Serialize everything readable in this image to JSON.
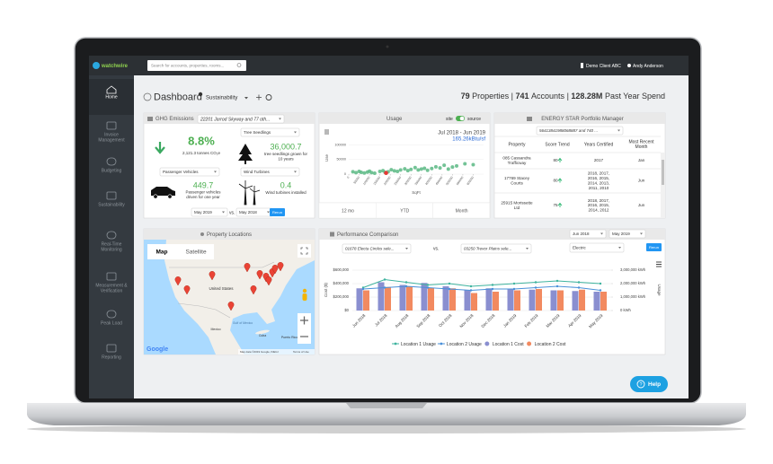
{
  "topbar": {
    "logo": "watchwire",
    "search": "Search for accounts, properties, rooms...",
    "client": "Demo Client ABC",
    "user": "Andy Anderson"
  },
  "sidebar": [
    [
      "Home"
    ],
    [
      "Invoice",
      "Management"
    ],
    [
      "Budgeting"
    ],
    [
      "Sustainability"
    ],
    [
      "Real-Time",
      "Monitoring"
    ],
    [
      "Measurement &",
      "Verification"
    ],
    [
      "Peak Load"
    ],
    [
      "Reporting"
    ]
  ],
  "header": {
    "title": "Dashboard",
    "view": "Sustainability",
    "properties": "79",
    "properties_label": "Properties",
    "accounts": "741",
    "accounts_label": "Accounts",
    "spend": "128.28M",
    "spend_label": "Past Year Spend",
    "separator": "|"
  },
  "ghg": {
    "title": "GHG Emissions",
    "selection": "22201 Jarrod Skyway and 77 oth...",
    "change": "8.8%",
    "total": "2,121.3 tonnes CO₂e",
    "tree_select": "Tree Seedlings",
    "trees": "36,000.7",
    "trees_text": [
      "tree seedlings grown for",
      "10 years"
    ],
    "vehicle_select": "Passenger Vehicles",
    "vehicles": "449.7",
    "vehicles_text": [
      "Passenger vehicles",
      "driven for one year"
    ],
    "wind_select": "Wind Turbines",
    "wind": "0.4",
    "wind_text": [
      "Wind turbines installed"
    ],
    "date_from": "May 2019",
    "vs": "vs.",
    "date_to": "May 2018",
    "rerun": "Rerun"
  },
  "usage": {
    "title": "Usage",
    "toggle_left": "site",
    "toggle_right": "source",
    "period": "Jul 2018 - Jun 2019",
    "value": "165.26kBtu/sf",
    "tabs": [
      "12 mo",
      "YTD",
      "Month"
    ],
    "chart": {
      "type": "scatter",
      "x_label": "SqFt",
      "y_label": "Use",
      "x": [
        20000,
        35000,
        50000,
        60000,
        75000,
        90000,
        100000,
        110000,
        125000,
        150000,
        165000,
        175000,
        190000,
        205000,
        220000,
        235000,
        250000,
        270000,
        285000,
        300000,
        320000,
        335000,
        350000,
        365000,
        380000,
        400000,
        420000,
        440000,
        460000,
        480000,
        500000,
        520000,
        560000,
        600000
      ],
      "y": [
        8000,
        5000,
        9000,
        6000,
        4000,
        7000,
        10000,
        5000,
        3000,
        9000,
        12000,
        6000,
        8000,
        15000,
        11000,
        9000,
        14000,
        18000,
        12000,
        16000,
        22000,
        14000,
        17000,
        20000,
        13000,
        19000,
        25000,
        21000,
        30000,
        17000,
        24000,
        28000,
        35000,
        32000
      ],
      "color": "#5bb884",
      "highlight_x": [
        180000
      ],
      "highlight_y": [
        4000
      ],
      "highlight_color": "#e53935",
      "xlim": [
        0,
        650000
      ],
      "ylim": [
        0,
        110000
      ],
      "yticks": [
        0,
        50000,
        100000
      ],
      "xticks": [
        0,
        50000,
        100000,
        150000,
        200000,
        250000,
        300000,
        350000,
        400000,
        450000,
        500000,
        550000,
        600000
      ]
    }
  },
  "energy_star": {
    "title": "ENERGY STAR Portfolio Manager",
    "selection": "56413841988068887 and 740 ...",
    "columns": [
      [
        "Property"
      ],
      [
        "Score Trend"
      ],
      [
        "Years Certified"
      ],
      [
        "Most Recent",
        "Month"
      ]
    ],
    "rows": [
      [
        [
          "085 Cassandra",
          "Trafficway"
        ],
        [
          "80"
        ],
        [
          "2017"
        ],
        [
          "Jan"
        ]
      ],
      [
        [
          "17769 Stacey",
          "Courts"
        ],
        [
          "80"
        ],
        [
          "2018, 2017,",
          "2016, 2015,",
          "2014, 2013,",
          "2011, 2010"
        ],
        [
          "Jun"
        ]
      ],
      [
        [
          "25915 Morissette",
          "Ltd"
        ],
        [
          "75"
        ],
        [
          "2018, 2017,",
          "2016, 2015,",
          "2014, 2012"
        ],
        [
          "Jun"
        ]
      ]
    ]
  },
  "map": {
    "title": "Property Locations",
    "tabs": [
      "Map",
      "Satellite"
    ],
    "labels": [
      "United States",
      "Mexico",
      "Gulf of Mexico",
      "Cuba",
      "Puerto Rico"
    ],
    "google": "Google",
    "attribution": "Map data ©2019 Google, INEGI",
    "terms": "Terms of Use"
  },
  "performance": {
    "title": "Performance Comparison",
    "location_1": "01678 Electa Circles sele...",
    "vs": "vs.",
    "location_2": "03250 Trevor Plains sele...",
    "date_from": "Jun 2018",
    "date_to": "May 2019",
    "commodity": "Electric",
    "rerun": "Rerun",
    "chart": {
      "type": "bar_line",
      "y_label": "Cost ($)",
      "y2_label": "Usage",
      "categories": [
        "Jun 2018",
        "Jul 2018",
        "Aug 2018",
        "Sep 2018",
        "Oct 2018",
        "Nov 2018",
        "Dec 2018",
        "Jan 2019",
        "Feb 2019",
        "Mar 2019",
        "Apr 2019",
        "May 2019"
      ],
      "ylim": [
        0,
        600000
      ],
      "yticks": [
        {
          "value": 0,
          "label": "$0"
        },
        {
          "value": 200000,
          "label": "$200,000"
        },
        {
          "value": 400000,
          "label": "$400,000"
        },
        {
          "value": 600000,
          "label": "$600,000"
        }
      ],
      "y2lim": [
        0,
        3000000
      ],
      "y2ticks": [
        {
          "value": 0,
          "label": "0 kWh"
        },
        {
          "value": 1000000,
          "label": "1,000,000 kWh"
        },
        {
          "value": 2000000,
          "label": "2,000,000 kWh"
        },
        {
          "value": 3000000,
          "label": "3,000,000 kWh"
        }
      ],
      "grid": true,
      "series": [
        {
          "name": "Location 1 Usage",
          "type": "line",
          "axis": "y2",
          "color": "#3db39e",
          "values": [
            1700000,
            2300000,
            2100000,
            1900000,
            2000000,
            1800000,
            1900000,
            2000000,
            2100000,
            2200000,
            2100000,
            2000000
          ]
        },
        {
          "name": "Location 2 Usage",
          "type": "line",
          "axis": "y2",
          "color": "#4a90d9",
          "values": [
            1600000,
            1700000,
            1800000,
            1700000,
            1600000,
            1500000,
            1600000,
            1600000,
            1700000,
            1800000,
            1700000,
            1500000
          ]
        },
        {
          "name": "Location 1 Cost",
          "type": "bar",
          "color": "#8a8fd0",
          "values": [
            330000,
            420000,
            380000,
            410000,
            360000,
            300000,
            330000,
            320000,
            310000,
            300000,
            290000,
            280000
          ]
        },
        {
          "name": "Location 2 Cost",
          "type": "bar",
          "color": "#f28a60",
          "values": [
            300000,
            350000,
            360000,
            340000,
            330000,
            260000,
            280000,
            300000,
            320000,
            300000,
            310000,
            280000
          ]
        }
      ]
    }
  },
  "help": "Help"
}
